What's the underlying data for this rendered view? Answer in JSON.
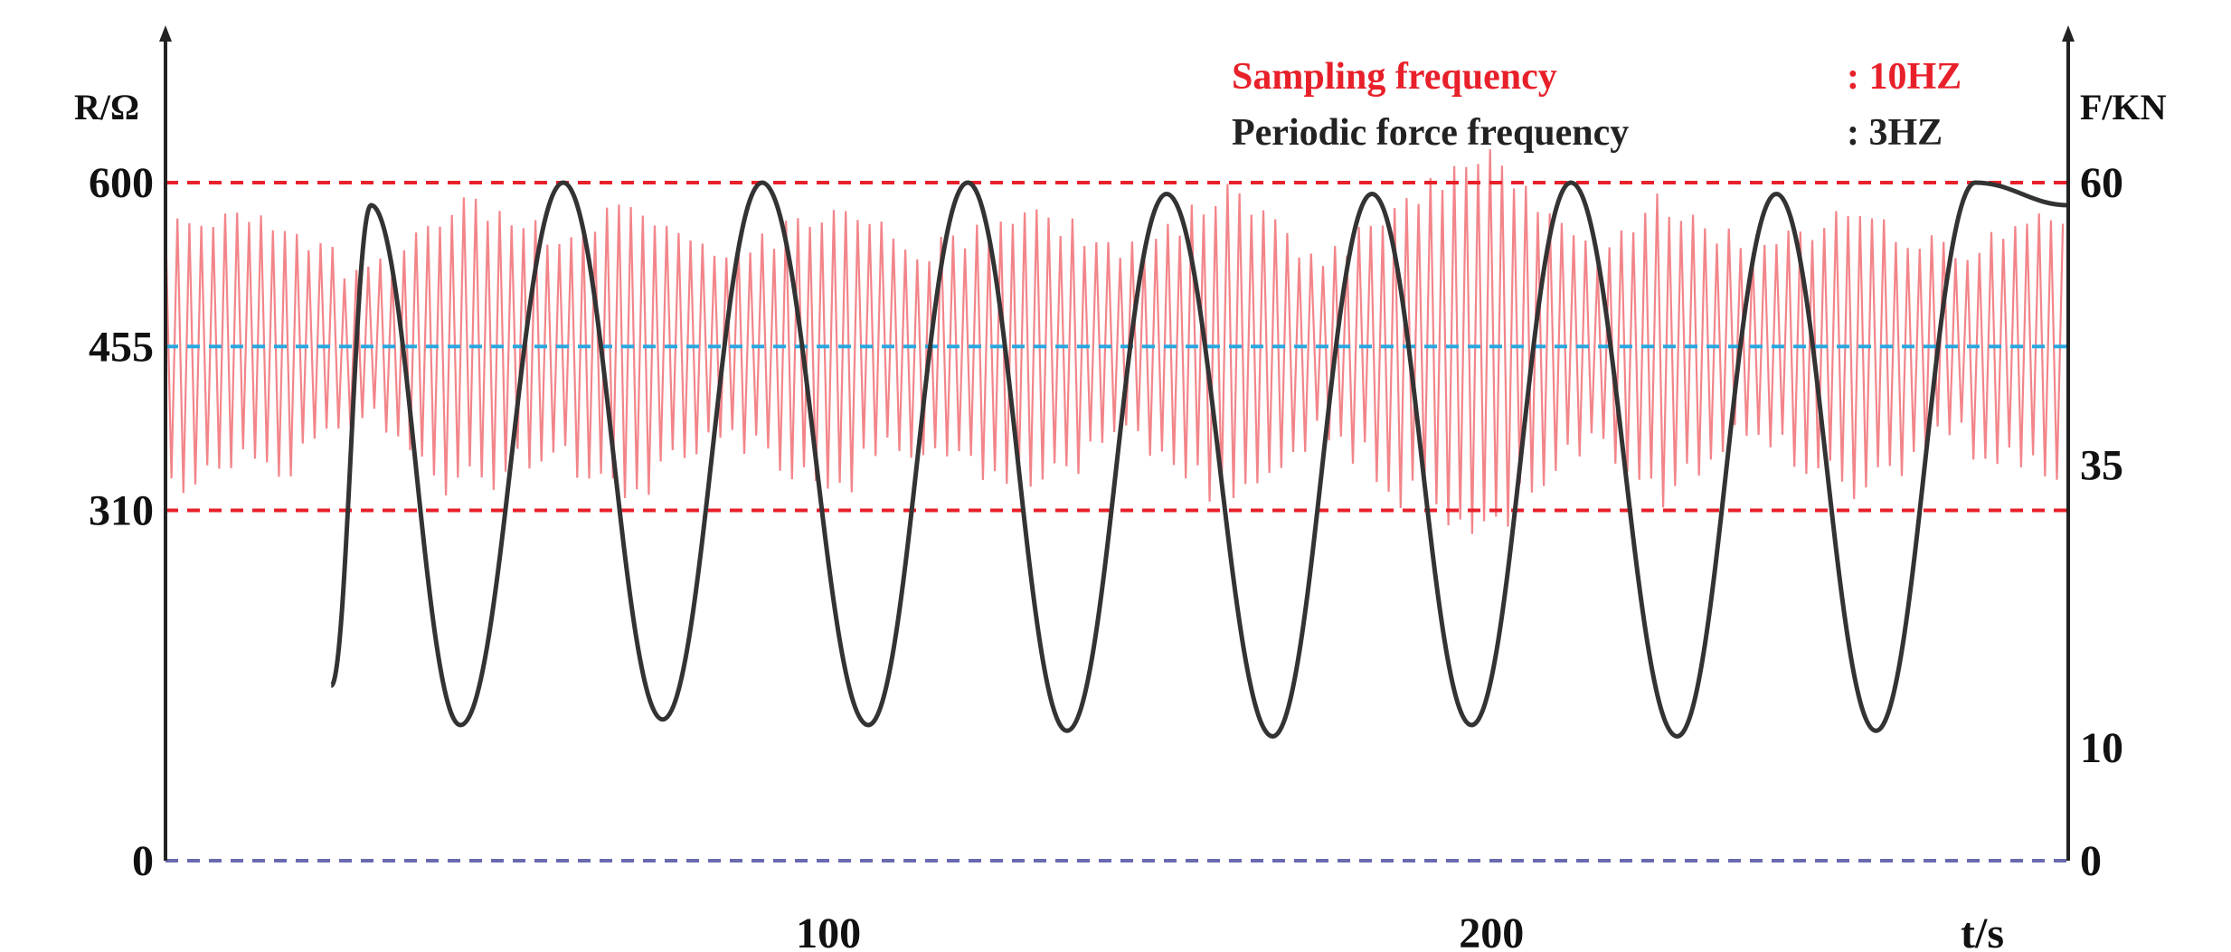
{
  "chart_data": {
    "type": "line",
    "left_axis": {
      "label": "R/Ω",
      "ticks": [
        0,
        310,
        455,
        600
      ],
      "range": [
        0,
        720
      ]
    },
    "right_axis": {
      "label": "F/KN",
      "ticks": [
        0,
        10,
        35,
        60
      ],
      "range": [
        0,
        72
      ]
    },
    "x_axis": {
      "label": "t/s",
      "ticks": [
        100,
        200
      ],
      "range": [
        0,
        287
      ]
    },
    "legend": [
      {
        "label": "Sampling frequency",
        "value": ": 10HZ",
        "color": "#e8202a"
      },
      {
        "label": "Periodic force frequency",
        "value": ": 3HZ",
        "color": "#222222"
      }
    ],
    "reference_lines": [
      {
        "value": 600,
        "axis": "left",
        "style": "dashed",
        "color": "#e8202a"
      },
      {
        "value": 455,
        "axis": "left",
        "style": "dashed",
        "color": "#2aa7e0"
      },
      {
        "value": 310,
        "axis": "left",
        "style": "dashed",
        "color": "#e8202a"
      },
      {
        "value": 0,
        "axis": "left",
        "style": "dashed",
        "color": "#6a6ab0"
      }
    ],
    "series": [
      {
        "axis": "left",
        "color": "#e8202a",
        "kind": "resistance-oscillation",
        "t_start": 0,
        "t_end": 287,
        "center": 455,
        "spike_peaks": [
          [
            0,
            580
          ],
          [
            15,
            575
          ],
          [
            30,
            530
          ],
          [
            45,
            590
          ],
          [
            60,
            560
          ],
          [
            70,
            590
          ],
          [
            85,
            545
          ],
          [
            100,
            590
          ],
          [
            115,
            550
          ],
          [
            130,
            590
          ],
          [
            145,
            545
          ],
          [
            160,
            600
          ],
          [
            175,
            540
          ],
          [
            190,
            610
          ],
          [
            200,
            630
          ],
          [
            215,
            545
          ],
          [
            225,
            600
          ],
          [
            240,
            545
          ],
          [
            255,
            590
          ],
          [
            270,
            545
          ],
          [
            287,
            590
          ]
        ]
      },
      {
        "axis": "right",
        "color": "#333333",
        "kind": "periodic-force",
        "points": [
          [
            25,
            15.5
          ],
          [
            31,
            58
          ],
          [
            44.5,
            12
          ],
          [
            60,
            60
          ],
          [
            75,
            12.5
          ],
          [
            90,
            60
          ],
          [
            106,
            12
          ],
          [
            121,
            60
          ],
          [
            136,
            11.5
          ],
          [
            151,
            59
          ],
          [
            167,
            11
          ],
          [
            182,
            59
          ],
          [
            197,
            12
          ],
          [
            212,
            60
          ],
          [
            228,
            11
          ],
          [
            243,
            59
          ],
          [
            258,
            11.5
          ],
          [
            273,
            60
          ],
          [
            287,
            58
          ]
        ]
      }
    ]
  }
}
